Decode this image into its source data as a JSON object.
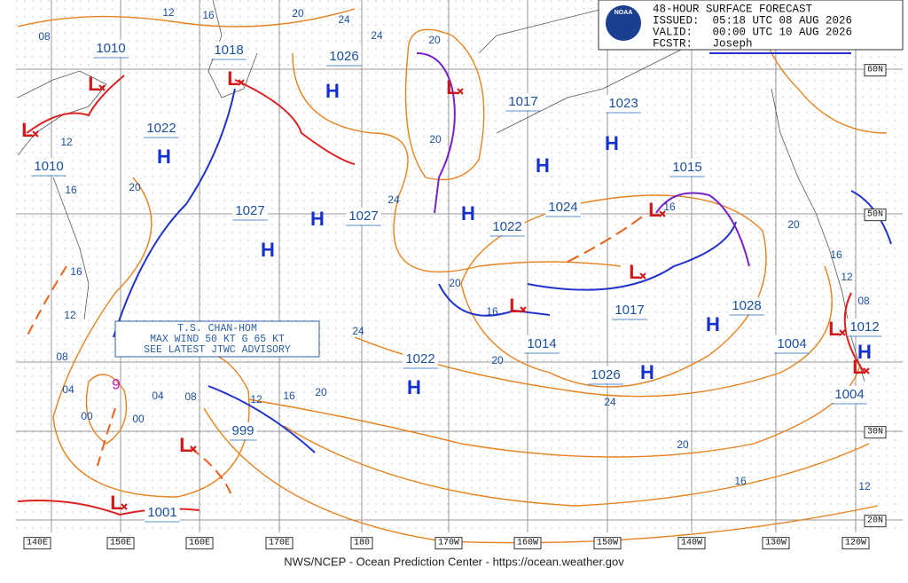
{
  "header": {
    "logo": "NOAA",
    "lines": [
      "48-HOUR SURFACE FORECAST",
      "ISSUED:  05:18 UTC 08 AUG 2026",
      "VALID:   00:00 UTC 10 AUG 2026",
      "FCSTR:   Joseph"
    ]
  },
  "longitude_labels": [
    "140E",
    "150E",
    "160E",
    "170E",
    "180",
    "170W",
    "160W",
    "150W",
    "140W",
    "130W",
    "120W"
  ],
  "latitude_labels": [
    "60N",
    "50N",
    "30N",
    "20N"
  ],
  "storm_advisory": [
    "T.S. CHAN-HOM",
    "MAX WIND 50 KT G 65 KT",
    "SEE LATEST JTWC ADVISORY"
  ],
  "storm_symbol": "9",
  "pressure_labels": [
    "1010",
    "1018",
    "1026",
    "1017",
    "1023",
    "1022",
    "1010",
    "1027",
    "1027",
    "1024",
    "1015",
    "1022",
    "1017",
    "1028",
    "1014",
    "1022",
    "1026",
    "1004",
    "1012",
    "1004",
    "999",
    "1001"
  ],
  "highs": [
    "H",
    "H",
    "H",
    "H",
    "H",
    "H",
    "H",
    "H",
    "H",
    "H",
    "H"
  ],
  "lows": [
    "L",
    "L",
    "L",
    "L",
    "L",
    "L",
    "L",
    "L",
    "L",
    "L",
    "L"
  ],
  "isobar_labels": [
    "12",
    "16",
    "20",
    "24",
    "24",
    "08",
    "20",
    "12",
    "20",
    "16",
    "20",
    "24",
    "16",
    "20",
    "16",
    "12",
    "08",
    "16",
    "12",
    "20",
    "16",
    "24",
    "08",
    "20",
    "04",
    "04",
    "08",
    "12",
    "16",
    "20",
    "00",
    "00",
    "24",
    "20",
    "16",
    "12"
  ],
  "footer": "NWS/NCEP - Ocean Prediction Center - https://ocean.weather.gov"
}
